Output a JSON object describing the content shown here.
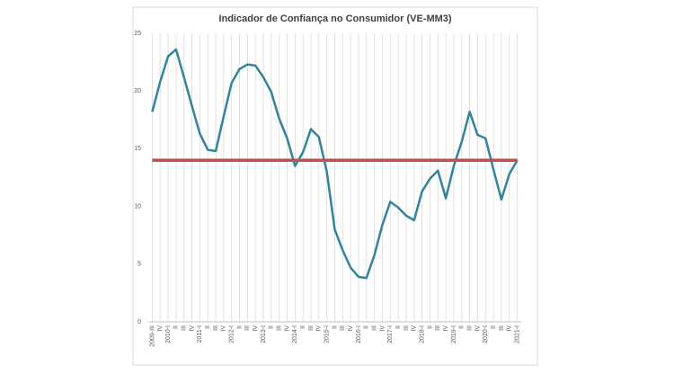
{
  "chart_data": {
    "type": "line",
    "title": "Indicador de Confiança no Consumidor (VE-MM3)",
    "categories": [
      "2009-III",
      "IV",
      "2010-I",
      "II",
      "III",
      "IV",
      "2011-I",
      "II",
      "III",
      "IV",
      "2012-I",
      "II",
      "III",
      "IV",
      "2013-I",
      "II",
      "III",
      "IV",
      "2014-I",
      "II",
      "III",
      "IV",
      "2015-I",
      "II",
      "III",
      "IV",
      "2016-I",
      "II",
      "III",
      "IV",
      "2017-I",
      "II",
      "III",
      "IV",
      "2018-I",
      "II",
      "III",
      "IV",
      "2019-I",
      "II",
      "III",
      "IV",
      "2020-I",
      "II",
      "III",
      "IV",
      "2021-I"
    ],
    "series": [
      {
        "color": "#31849b",
        "values": [
          18.2,
          20.8,
          23.0,
          23.6,
          21.2,
          18.7,
          16.3,
          14.9,
          14.8,
          17.8,
          20.7,
          21.9,
          22.3,
          22.2,
          21.2,
          19.9,
          17.6,
          15.9,
          13.5,
          14.7,
          16.7,
          16.0,
          13.0,
          8.0,
          6.2,
          4.7,
          3.9,
          3.8,
          5.8,
          8.4,
          10.4,
          9.9,
          9.2,
          8.8,
          11.3,
          12.4,
          13.1,
          10.7,
          13.5,
          15.6,
          18.2,
          16.2,
          15.9,
          13.2,
          10.6,
          12.8,
          14.0
        ]
      },
      {
        "color": "#c0504d",
        "values": [
          14,
          14,
          14,
          14,
          14,
          14,
          14,
          14,
          14,
          14,
          14,
          14,
          14,
          14,
          14,
          14,
          14,
          14,
          14,
          14,
          14,
          14,
          14,
          14,
          14,
          14,
          14,
          14,
          14,
          14,
          14,
          14,
          14,
          14,
          14,
          14,
          14,
          14,
          14,
          14,
          14,
          14,
          14,
          14,
          14,
          14,
          14
        ]
      }
    ],
    "ylim": [
      0,
      25
    ],
    "yticks": [
      0,
      5,
      10,
      15,
      20,
      25
    ],
    "grid": "x"
  }
}
